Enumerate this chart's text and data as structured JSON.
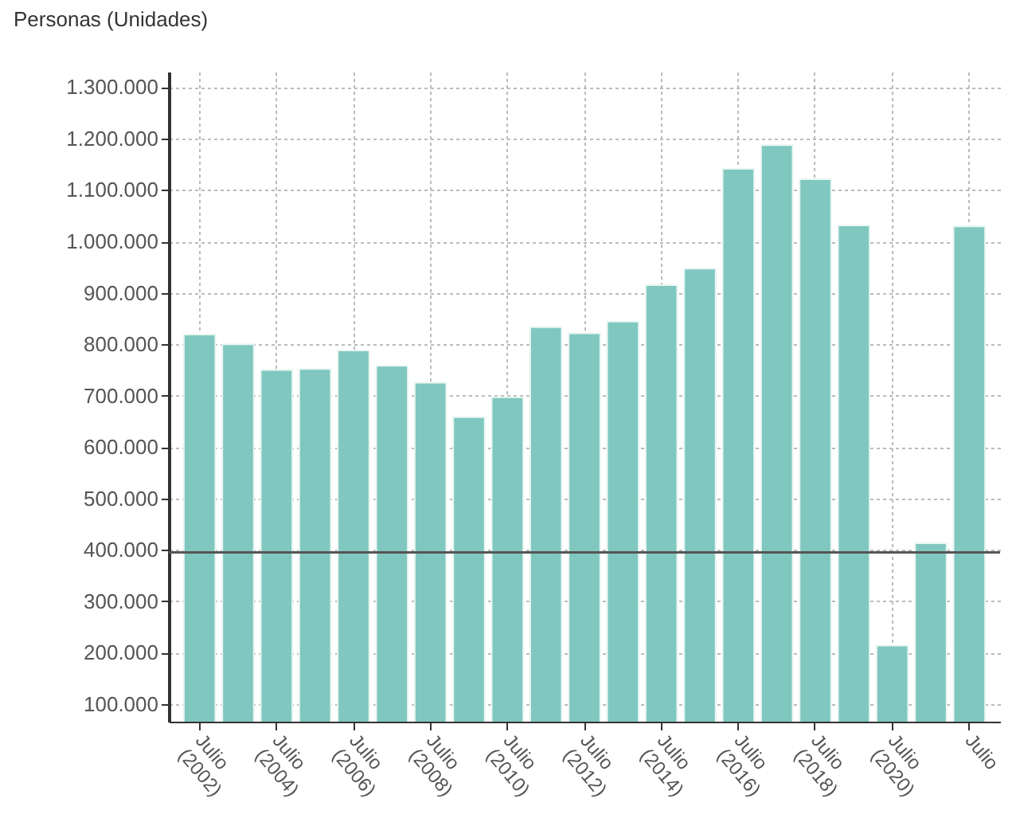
{
  "chart_data": {
    "type": "bar",
    "ylabel": "Personas (Unidades)",
    "categories": [
      "Julio (2002)",
      null,
      "Julio (2004)",
      null,
      "Julio (2006)",
      null,
      "Julio (2008)",
      null,
      "Julio (2010)",
      null,
      "Julio (2012)",
      null,
      "Julio (2014)",
      null,
      "Julio (2016)",
      null,
      "Julio (2018)",
      null,
      "Julio (2020)",
      null,
      "Julio"
    ],
    "values": [
      819000,
      800000,
      750000,
      752000,
      788000,
      758000,
      725000,
      658000,
      697000,
      833000,
      821000,
      844000,
      915000,
      947000,
      1141000,
      1187000,
      1121000,
      1031000,
      214000,
      413000,
      1029000
    ],
    "color": "#80c7bf",
    "ylim": [
      66000,
      1330000
    ],
    "yticks": [
      {
        "value": 100000,
        "label": "100.000"
      },
      {
        "value": 200000,
        "label": "200.000"
      },
      {
        "value": 300000,
        "label": "300.000"
      },
      {
        "value": 400000,
        "label": "400.000"
      },
      {
        "value": 500000,
        "label": "500.000"
      },
      {
        "value": 600000,
        "label": "600.000"
      },
      {
        "value": 700000,
        "label": "700.000"
      },
      {
        "value": 800000,
        "label": "800.000"
      },
      {
        "value": 900000,
        "label": "900.000"
      },
      {
        "value": 1000000,
        "label": "1.000.000"
      },
      {
        "value": 1100000,
        "label": "1.100.000"
      },
      {
        "value": 1200000,
        "label": "1.200.000"
      },
      {
        "value": 1300000,
        "label": "1.300.000"
      }
    ],
    "ref_lines": [
      {
        "axis": "y",
        "value": 395000,
        "color": "#555555"
      }
    ],
    "grid": true
  }
}
